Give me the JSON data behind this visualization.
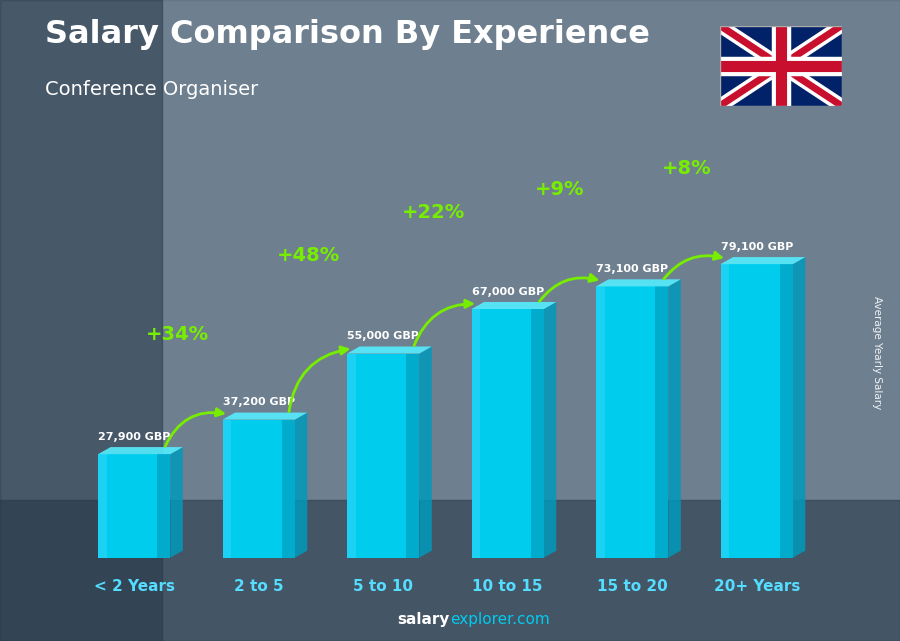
{
  "title": "Salary Comparison By Experience",
  "subtitle": "Conference Organiser",
  "categories": [
    "< 2 Years",
    "2 to 5",
    "5 to 10",
    "10 to 15",
    "15 to 20",
    "20+ Years"
  ],
  "values": [
    27900,
    37200,
    55000,
    67000,
    73100,
    79100
  ],
  "salary_labels": [
    "27,900 GBP",
    "37,200 GBP",
    "55,000 GBP",
    "67,000 GBP",
    "73,100 GBP",
    "79,100 GBP"
  ],
  "pct_changes": [
    "+34%",
    "+48%",
    "+22%",
    "+9%",
    "+8%"
  ],
  "col_front": "#00ccee",
  "col_left": "#009abb",
  "col_top": "#55eeff",
  "col_highlight": "#44ddff",
  "green_color": "#77ee00",
  "white": "#ffffff",
  "ylabel": "Average Yearly Salary",
  "footer_bold": "salary",
  "footer_light": "explorer.com",
  "footer_color_bold": "#ffffff",
  "footer_color_light": "#00ccee",
  "ylim": [
    0,
    95000
  ],
  "bg_color": "#555566"
}
